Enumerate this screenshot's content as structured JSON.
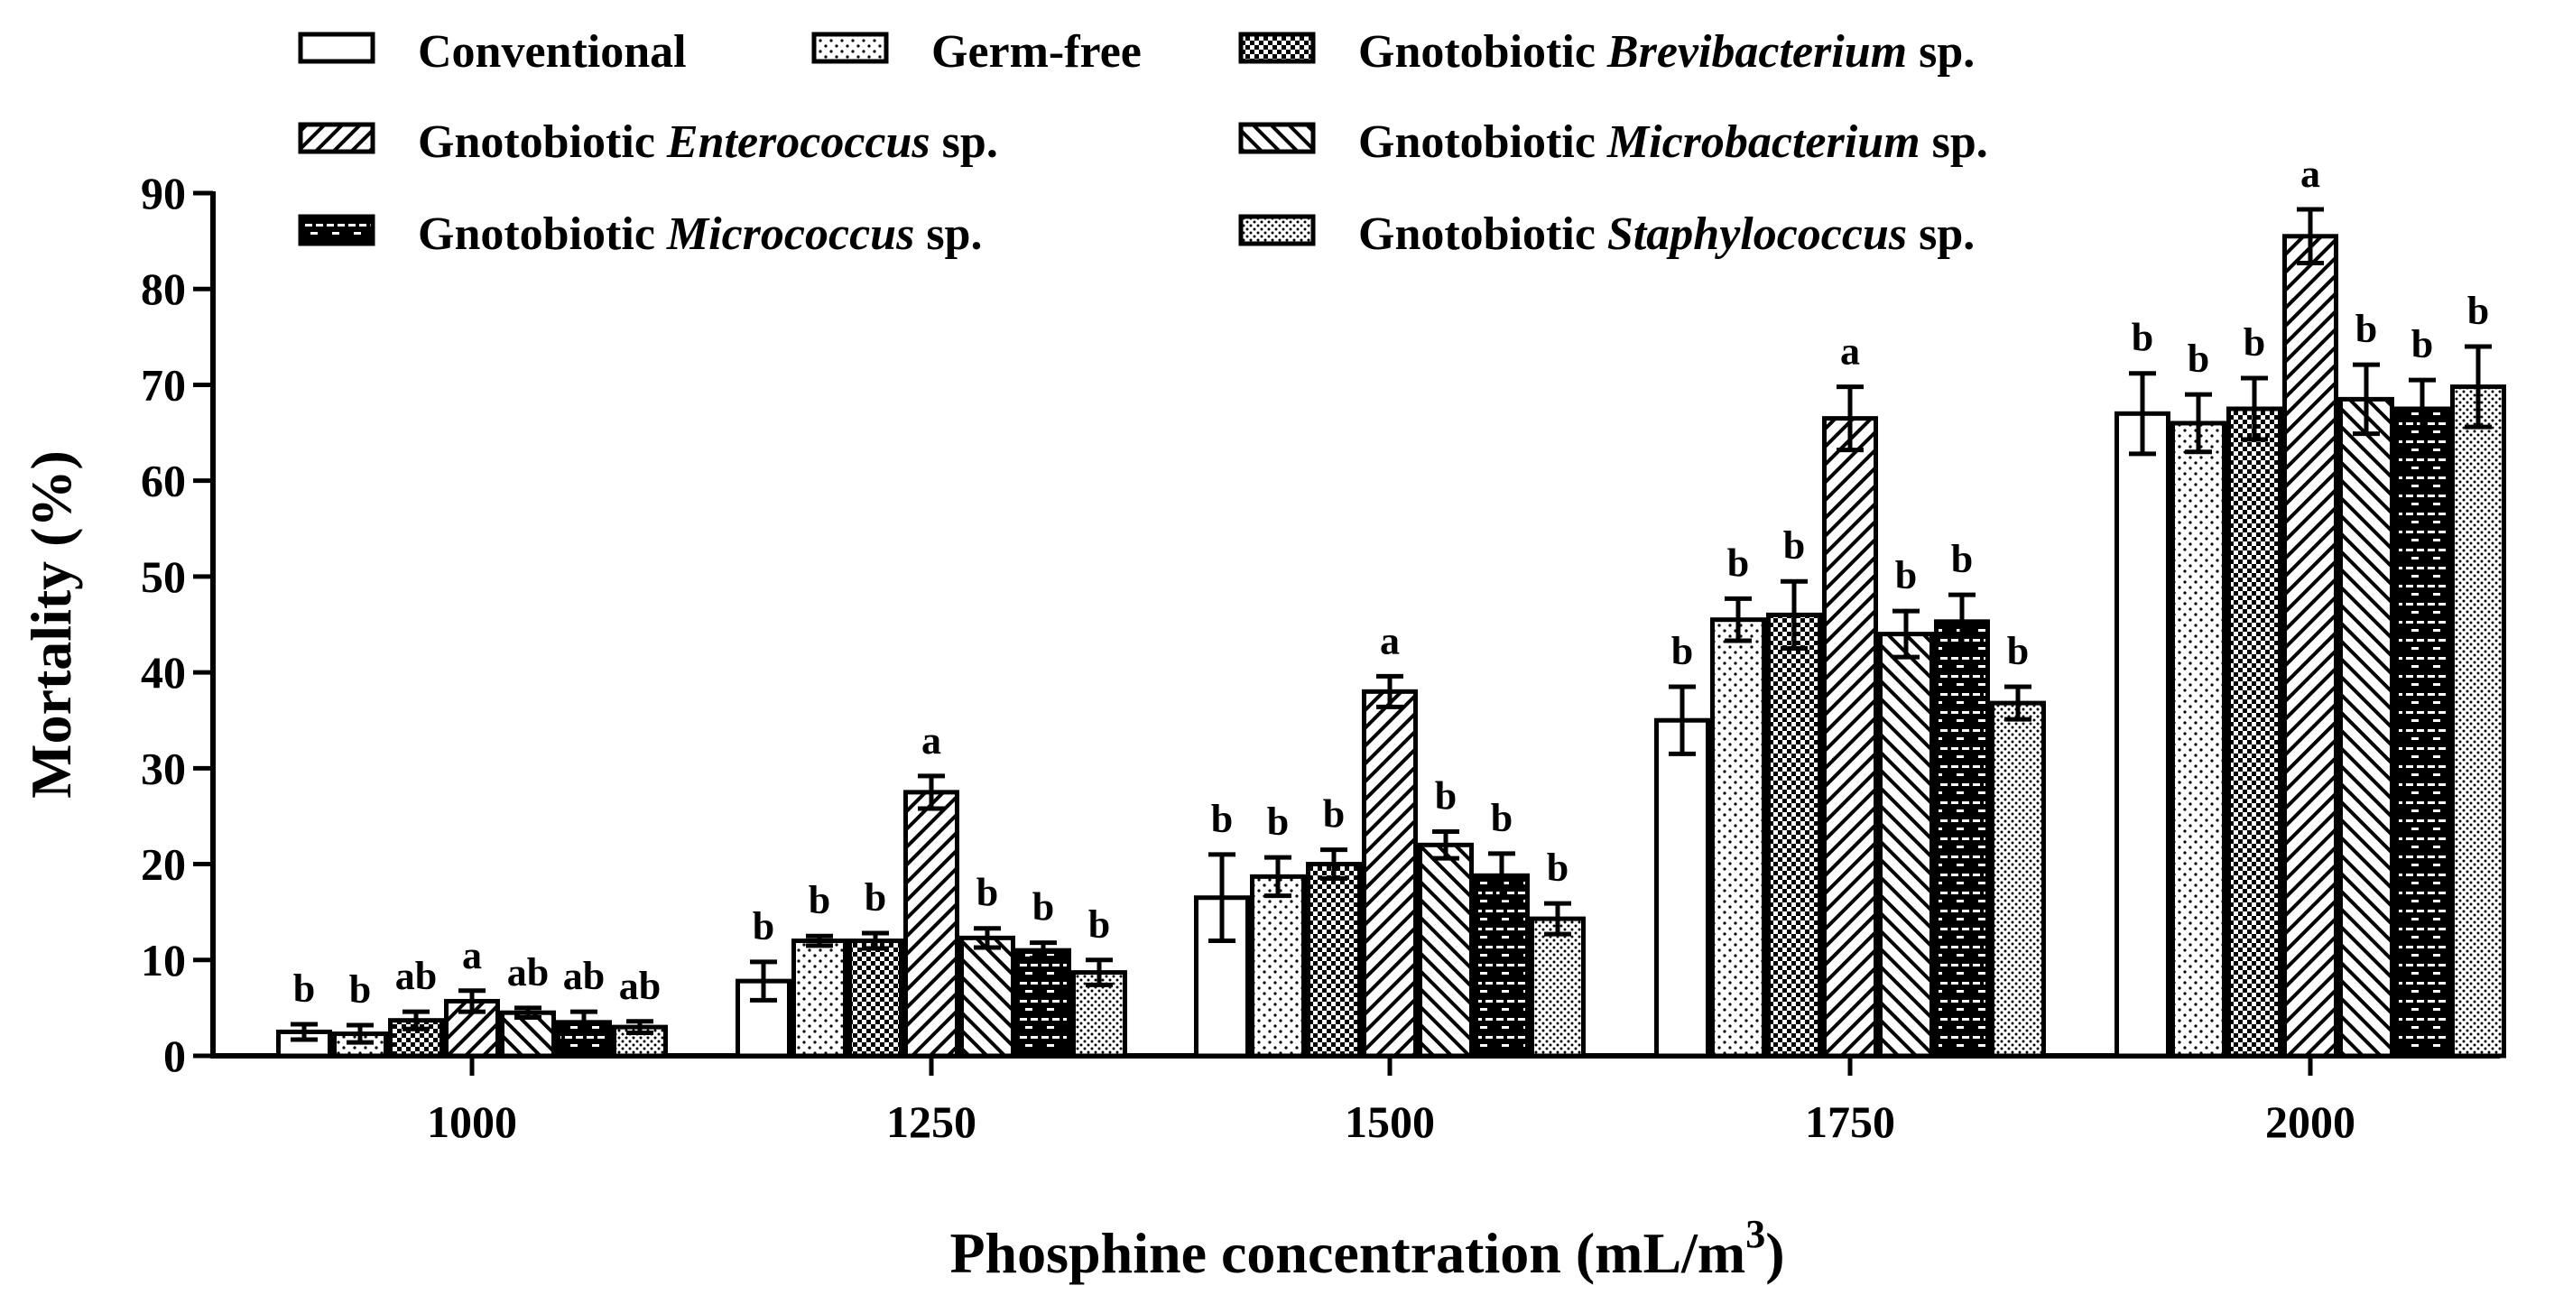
{
  "chart_data": {
    "type": "bar",
    "title": "",
    "xlabel": "Phosphine concentration  (mL/m",
    "xlabel_sup": "3",
    "xlabel_close": ")",
    "ylabel": "Mortality (%)",
    "ylim": [
      0,
      90
    ],
    "yticks": [
      0,
      10,
      20,
      30,
      40,
      50,
      60,
      70,
      80,
      90
    ],
    "categories": [
      "1000",
      "1250",
      "1500",
      "1750",
      "2000"
    ],
    "series": [
      {
        "name": "Conventional",
        "name_prefix": "Conventional",
        "name_italic": "",
        "name_suffix": "",
        "pattern": "blank",
        "values": [
          2.5,
          7.8,
          16.5,
          35.0,
          67.0
        ],
        "errors": [
          0.8,
          2.0,
          4.5,
          3.5,
          4.2
        ],
        "letters": [
          "b",
          "b",
          "b",
          "b",
          "b"
        ]
      },
      {
        "name": "Germ-free",
        "name_prefix": "Germ-free",
        "name_italic": "",
        "name_suffix": "",
        "pattern": "dots",
        "values": [
          2.3,
          12.0,
          18.7,
          45.5,
          66.0
        ],
        "errors": [
          0.9,
          0.5,
          2.0,
          2.2,
          3.0
        ],
        "letters": [
          "b",
          "b",
          "b",
          "b",
          "b"
        ]
      },
      {
        "name": "Gnotobiotic Brevibacterium sp.",
        "name_prefix": "Gnotobiotic ",
        "name_italic": "Brevibacterium",
        "name_suffix": " sp.",
        "pattern": "checker",
        "values": [
          3.7,
          12.0,
          20.0,
          46.0,
          67.5
        ],
        "errors": [
          0.9,
          0.8,
          1.5,
          3.5,
          3.2
        ],
        "letters": [
          "ab",
          "b",
          "b",
          "b",
          "b"
        ]
      },
      {
        "name": "Gnotobiotic Enterococcus sp.",
        "name_prefix": "Gnotobiotic ",
        "name_italic": "Enterococcus",
        "name_suffix": " sp.",
        "pattern": "diag-back",
        "values": [
          5.7,
          27.5,
          38.0,
          66.5,
          85.5
        ],
        "errors": [
          1.1,
          1.7,
          1.6,
          3.3,
          2.8
        ],
        "letters": [
          "a",
          "a",
          "a",
          "a",
          "a"
        ]
      },
      {
        "name": "Gnotobiotic Microbacterium sp.",
        "name_prefix": "Gnotobiotic ",
        "name_italic": "Microbacterium",
        "name_suffix": " sp.",
        "pattern": "diag-fwd",
        "values": [
          4.5,
          12.3,
          22.0,
          44.0,
          68.5
        ],
        "errors": [
          0.5,
          1.0,
          1.4,
          2.4,
          3.6
        ],
        "letters": [
          "ab",
          "b",
          "b",
          "b",
          "b"
        ]
      },
      {
        "name": "Gnotobiotic Micrococcus sp.",
        "name_prefix": "Gnotobiotic ",
        "name_italic": "Micrococcus",
        "name_suffix": " sp.",
        "pattern": "brick",
        "values": [
          3.5,
          11.0,
          18.8,
          45.3,
          67.5
        ],
        "errors": [
          1.1,
          0.8,
          2.3,
          2.8,
          3.0
        ],
        "letters": [
          "ab",
          "b",
          "b",
          "b",
          "b"
        ]
      },
      {
        "name": "Gnotobiotic Staphylococcus sp.",
        "name_prefix": "Gnotobiotic ",
        "name_italic": "Staphylococcus",
        "name_suffix": " sp.",
        "pattern": "dense-dots",
        "values": [
          3.0,
          8.7,
          14.3,
          36.8,
          69.8
        ],
        "errors": [
          0.6,
          1.3,
          1.6,
          1.7,
          4.2
        ],
        "letters": [
          "ab",
          "b",
          "b",
          "b",
          "b"
        ]
      }
    ],
    "legend_position": "top-left"
  }
}
